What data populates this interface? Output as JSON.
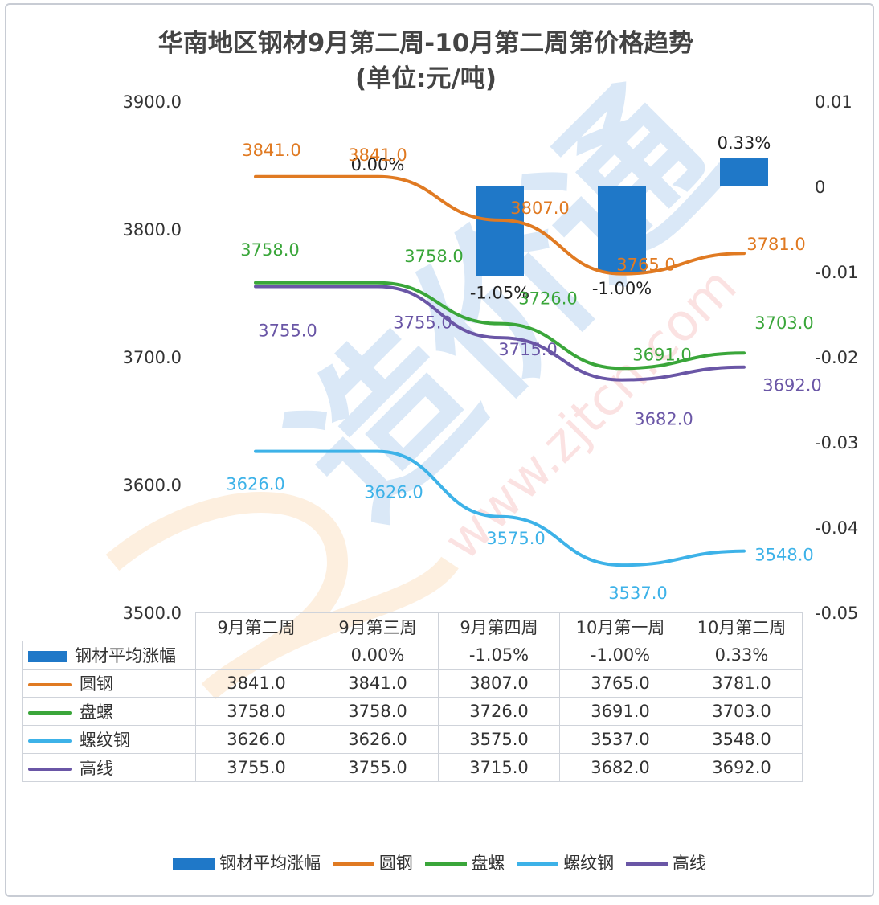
{
  "title_line1": "华南地区钢材9月第二周-10月第二周第价格趋势",
  "title_line2": "(单位:元/吨)",
  "chart_data": {
    "type": "bar",
    "categories": [
      "9月第二周",
      "9月第三周",
      "9月第四周",
      "10月第一周",
      "10月第二周"
    ],
    "left_axis": {
      "min": 3500,
      "max": 3900,
      "ticks": [
        "3900.0",
        "3800.0",
        "3700.0",
        "3600.0",
        "3500.0"
      ]
    },
    "right_axis": {
      "min": -0.05,
      "max": 0.01,
      "ticks": [
        "0.01",
        "0",
        "-0.01",
        "-0.02",
        "-0.03",
        "-0.04",
        "-0.05"
      ]
    },
    "bar_series": {
      "name": "钢材平均涨幅",
      "color": "#1f78c8",
      "values": [
        null,
        0.0,
        -0.0105,
        -0.01,
        0.0033
      ],
      "labels": [
        "",
        "0.00%",
        "-1.05%",
        "-1.00%",
        "0.33%"
      ]
    },
    "line_series": [
      {
        "name": "圆钢",
        "color": "#e07a22",
        "values": [
          3841.0,
          3841.0,
          3807.0,
          3765.0,
          3781.0
        ],
        "labels": [
          "3841.0",
          "3841.0",
          "3807.0",
          "3765.0",
          "3781.0"
        ]
      },
      {
        "name": "盘螺",
        "color": "#3aa63a",
        "values": [
          3758.0,
          3758.0,
          3726.0,
          3691.0,
          3703.0
        ],
        "labels": [
          "3758.0",
          "3758.0",
          "3726.0",
          "3691.0",
          "3703.0"
        ]
      },
      {
        "name": "螺纹钢",
        "color": "#3db2e8",
        "values": [
          3626.0,
          3626.0,
          3575.0,
          3537.0,
          3548.0
        ],
        "labels": [
          "3626.0",
          "3626.0",
          "3575.0",
          "3537.0",
          "3548.0"
        ]
      },
      {
        "name": "高线",
        "color": "#6a56a6",
        "values": [
          3755.0,
          3755.0,
          3715.0,
          3682.0,
          3692.0
        ],
        "labels": [
          "3755.0",
          "3755.0",
          "3715.0",
          "3682.0",
          "3692.0"
        ]
      }
    ],
    "legend_position": "bottom",
    "grid": false
  },
  "table": {
    "rows": [
      {
        "name": "钢材平均涨幅",
        "cells": [
          "",
          "0.00%",
          "-1.05%",
          "-1.00%",
          "0.33%"
        ]
      },
      {
        "name": "圆钢",
        "cells": [
          "3841.0",
          "3841.0",
          "3807.0",
          "3765.0",
          "3781.0"
        ]
      },
      {
        "name": "盘螺",
        "cells": [
          "3758.0",
          "3758.0",
          "3726.0",
          "3691.0",
          "3703.0"
        ]
      },
      {
        "name": "螺纹钢",
        "cells": [
          "3626.0",
          "3626.0",
          "3575.0",
          "3537.0",
          "3548.0"
        ]
      },
      {
        "name": "高线",
        "cells": [
          "3755.0",
          "3755.0",
          "3715.0",
          "3682.0",
          "3692.0"
        ]
      }
    ]
  },
  "watermark": {
    "url_text": "www.zjtcn.com",
    "logo_text": "造价通"
  }
}
